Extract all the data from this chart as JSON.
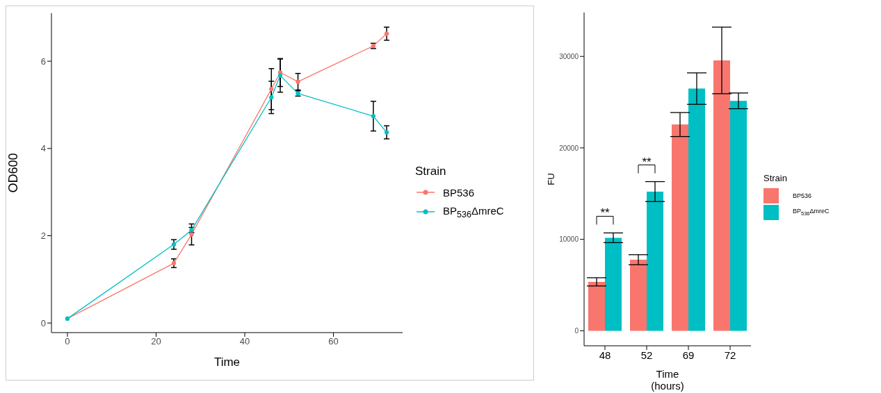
{
  "chart_data": [
    {
      "type": "line",
      "xlabel": "Time",
      "ylabel": "OD600",
      "legend_title": "Strain",
      "legend": "right",
      "marker": "circle",
      "x": [
        0,
        24,
        28,
        46,
        48,
        52,
        69,
        72
      ],
      "xlim": [
        -3.6,
        75.6
      ],
      "xticks": [
        0,
        20,
        40,
        60
      ],
      "ylim": [
        -0.22,
        7.1
      ],
      "yticks": [
        0,
        2,
        4,
        6
      ],
      "series": [
        {
          "name": "BP536",
          "color": "#f8766d",
          "values": [
            0.1,
            1.37,
            2.03,
            5.36,
            5.74,
            5.53,
            6.35,
            6.63
          ],
          "errors": [
            null,
            0.1,
            0.24,
            0.47,
            0.32,
            0.19,
            0.06,
            0.15
          ]
        },
        {
          "name": "BP$_{536}$ΔmreC",
          "color": "#00bfc4",
          "values": [
            0.1,
            1.8,
            2.13,
            5.17,
            5.67,
            5.26,
            4.74,
            4.37
          ],
          "errors": [
            null,
            0.11,
            0.06,
            0.37,
            0.38,
            0.06,
            0.34,
            0.15
          ]
        }
      ]
    },
    {
      "type": "bar",
      "xlabel": "Time (hours)",
      "ylabel": "FU",
      "legend_title": "Strain",
      "legend": "right",
      "categories": [
        "48",
        "52",
        "69",
        "72"
      ],
      "ylim": [
        -1640,
        34800
      ],
      "yticks": [
        0,
        10000,
        20000,
        30000
      ],
      "series": [
        {
          "name": "BP536",
          "color": "#f8766d",
          "values": [
            5350,
            7770,
            22550,
            29560
          ],
          "errors": [
            450,
            550,
            1310,
            3640
          ]
        },
        {
          "name": "BP$_{536}$ΔmreC",
          "color": "#00bfc4",
          "values": [
            10170,
            15220,
            26480,
            25140
          ],
          "errors": [
            530,
            1090,
            1720,
            860
          ]
        }
      ],
      "annotations": [
        "**",
        "**"
      ]
    }
  ]
}
